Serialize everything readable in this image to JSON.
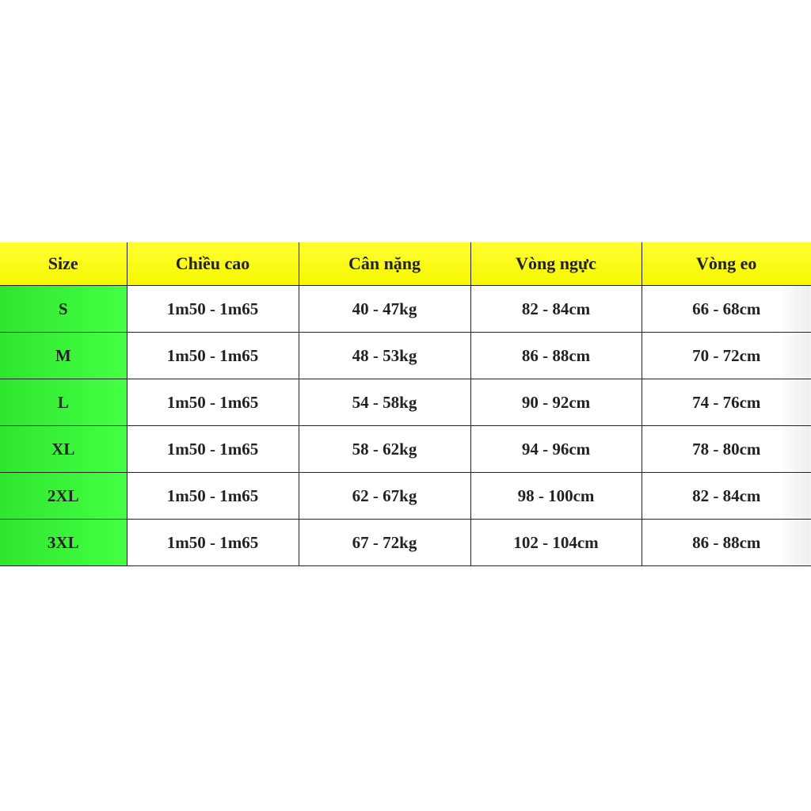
{
  "colors": {
    "header": "#ffff00",
    "size_column": "#33ee33"
  },
  "table": {
    "headers": [
      "Size",
      "Chiều cao",
      "Cân nặng",
      "Vòng ngực",
      "Vòng eo"
    ],
    "rows": [
      [
        "S",
        "1m50 - 1m65",
        "40 - 47kg",
        "82 - 84cm",
        "66 - 68cm"
      ],
      [
        "M",
        "1m50 - 1m65",
        "48 - 53kg",
        "86 - 88cm",
        "70 - 72cm"
      ],
      [
        "L",
        "1m50 - 1m65",
        "54 - 58kg",
        "90 - 92cm",
        "74 - 76cm"
      ],
      [
        "XL",
        "1m50 - 1m65",
        "58 - 62kg",
        "94 - 96cm",
        "78 - 80cm"
      ],
      [
        "2XL",
        "1m50 - 1m65",
        "62 - 67kg",
        "98 - 100cm",
        "82 - 84cm"
      ],
      [
        "3XL",
        "1m50 - 1m65",
        "67 - 72kg",
        "102 - 104cm",
        "86 - 88cm"
      ]
    ]
  }
}
